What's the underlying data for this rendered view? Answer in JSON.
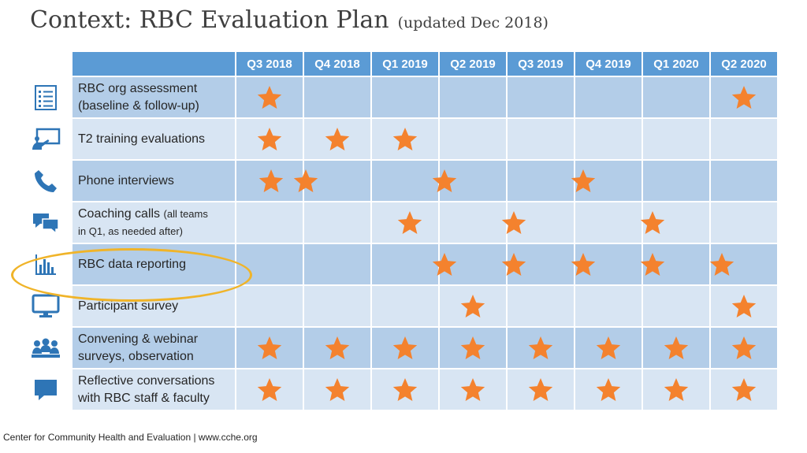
{
  "slide": {
    "title": "Context: RBC Evaluation Plan",
    "subtitle": "(updated Dec 2018)",
    "footer": "Center for Community Health and Evaluation | www.cche.org",
    "highlighted_row": 4
  },
  "colors": {
    "header_bg": "#5b9bd5",
    "row_dark": "#b3cde8",
    "row_light": "#d8e5f3",
    "star": "#f4822e",
    "icon": "#2e75b6",
    "highlight_ellipse": "#f0b429",
    "title_text": "#3f3f3f"
  },
  "table": {
    "quarters": [
      "Q3 2018",
      "Q4 2018",
      "Q1 2019",
      "Q2 2019",
      "Q3 2019",
      "Q4 2019",
      "Q1 2020",
      "Q2 2020"
    ],
    "rows": [
      {
        "label": "RBC org assessment",
        "label2": "(baseline & follow-up)",
        "label2_small": false,
        "icon": "checklist-icon",
        "stars": [
          1,
          0,
          0,
          0,
          0,
          0,
          0,
          1
        ]
      },
      {
        "label": "T2 training evaluations",
        "label2": "",
        "label2_small": false,
        "icon": "presentation-icon",
        "stars": [
          1,
          1,
          1,
          0,
          0,
          0,
          0,
          0
        ]
      },
      {
        "label": "Phone interviews",
        "label2": "",
        "label2_small": false,
        "icon": "phone-icon",
        "stars": [
          1,
          0,
          0,
          0,
          0,
          0,
          0,
          0
        ],
        "offsets": [
          0,
          0.5,
          2.5,
          4.5
        ]
      },
      {
        "label": "Coaching calls",
        "label_small": "(all teams",
        "label2": "in Q1, as needed after)",
        "label2_small": true,
        "icon": "chat-bubbles-icon",
        "stars": [
          0,
          0,
          0,
          0,
          0,
          0,
          0,
          0
        ],
        "offsets": [
          2,
          3.5,
          5.5
        ]
      },
      {
        "label": "RBC data reporting",
        "label2": "",
        "label2_small": false,
        "icon": "bar-chart-icon",
        "stars": [
          0,
          0,
          0,
          0,
          0,
          0,
          0,
          0
        ],
        "offsets": [
          2.5,
          3.5,
          4.5,
          5.5,
          6.5
        ]
      },
      {
        "label": "Participant survey",
        "label2": "",
        "label2_small": false,
        "icon": "monitor-icon",
        "stars": [
          0,
          0,
          0,
          1,
          0,
          0,
          0,
          1
        ]
      },
      {
        "label": "Convening & webinar",
        "label2": "surveys, observation",
        "label2_small": false,
        "icon": "group-icon",
        "stars": [
          1,
          1,
          1,
          1,
          1,
          1,
          1,
          1
        ]
      },
      {
        "label": "Reflective conversations",
        "label2": "with RBC staff & faculty",
        "label2_small": false,
        "icon": "speech-bubble-icon",
        "stars": [
          1,
          1,
          1,
          1,
          1,
          1,
          1,
          1
        ]
      }
    ]
  }
}
